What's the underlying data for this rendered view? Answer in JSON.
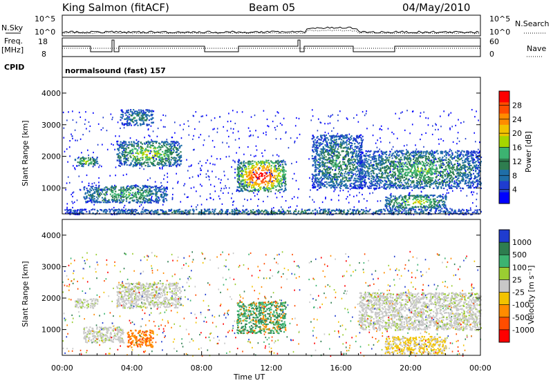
{
  "header": {
    "station": "King Salmon (fitACF)",
    "beam": "Beam 05",
    "date": "04/May/2010"
  },
  "side_labels": {
    "nsky": "N.Sky",
    "nsky_ticks": [
      "10^5",
      "10^0"
    ],
    "nsearch": "N.Search",
    "nsearch_ticks": [
      "10^5",
      "10^0"
    ],
    "freq_line1": "Freq.",
    "freq_line2": "[MHz]",
    "freq_ticks": [
      "18",
      "8"
    ],
    "nave": "Nave",
    "nave_ticks": [
      "60",
      "0"
    ],
    "cpid": "CPID",
    "cpid_value": "normalsound (fast) 157"
  },
  "chart_data": [
    {
      "type": "heatmap",
      "name": "power",
      "ylabel": "Slant Range [km]",
      "xlabel": "",
      "x_range_hours": [
        0,
        24
      ],
      "ylim": [
        180,
        4500
      ],
      "y_ticks": [
        1000,
        2000,
        3000,
        4000
      ],
      "colorbar": {
        "label": "Power [dB]",
        "ticks": [
          "28",
          "24",
          "20",
          "16",
          "12",
          "8",
          "4"
        ],
        "colors": [
          "#ff0000",
          "#ff4d00",
          "#ff8c00",
          "#f2c300",
          "#a6d600",
          "#3cb371",
          "#2e7d4f",
          "#1f6ea8",
          "#1f3ccf",
          "#0000ff"
        ]
      },
      "regions": [
        {
          "t0": 0.7,
          "t1": 2.0,
          "r0": 1700,
          "r1": 2000,
          "level": 0.35
        },
        {
          "t0": 3.1,
          "t1": 6.8,
          "r0": 1700,
          "r1": 2500,
          "level": 0.4
        },
        {
          "t0": 1.2,
          "t1": 6.0,
          "r0": 550,
          "r1": 1100,
          "level": 0.3
        },
        {
          "t0": 3.3,
          "t1": 5.2,
          "r0": 3000,
          "r1": 3500,
          "level": 0.2
        },
        {
          "t0": 10.0,
          "t1": 12.8,
          "r0": 900,
          "r1": 1900,
          "level": 0.75
        },
        {
          "t0": 14.3,
          "t1": 17.2,
          "r0": 1000,
          "r1": 2700,
          "level": 0.25
        },
        {
          "t0": 17.0,
          "t1": 24.0,
          "r0": 1000,
          "r1": 2200,
          "level": 0.3
        },
        {
          "t0": 18.5,
          "t1": 22.0,
          "r0": 350,
          "r1": 800,
          "level": 0.4
        },
        {
          "t0": 0.0,
          "t1": 24.0,
          "r0": 180,
          "r1": 350,
          "level": 0.2
        }
      ]
    },
    {
      "type": "heatmap",
      "name": "velocity",
      "ylabel": "Slant Range [km]",
      "xlabel": "Time UT",
      "x_range_hours": [
        0,
        24
      ],
      "x_ticks": [
        "00:00",
        "04:00",
        "08:00",
        "12:00",
        "16:00",
        "20:00",
        "00:00"
      ],
      "ylim": [
        180,
        4500
      ],
      "y_ticks": [
        1000,
        2000,
        3000,
        4000
      ],
      "colorbar": {
        "label": "Velocity [m s⁻¹]",
        "ticks": [
          "1000",
          "500",
          "100",
          "25",
          "-25",
          "-100",
          "-500",
          "-1000"
        ],
        "colors": [
          "#1f3ccf",
          "#2e7d4f",
          "#3cb371",
          "#9acd32",
          "#c8c8c8",
          "#f2c300",
          "#ff8c00",
          "#ff4d00",
          "#ff0000"
        ]
      },
      "regions": [
        {
          "t0": 0.7,
          "t1": 2.0,
          "r0": 1700,
          "r1": 2000,
          "v": "ground"
        },
        {
          "t0": 3.1,
          "t1": 6.8,
          "r0": 1700,
          "r1": 2500,
          "v": "ground"
        },
        {
          "t0": 1.2,
          "t1": 3.5,
          "r0": 600,
          "r1": 1100,
          "v": "ground"
        },
        {
          "t0": 3.7,
          "t1": 5.2,
          "r0": 450,
          "r1": 1000,
          "v": "negative"
        },
        {
          "t0": 10.0,
          "t1": 12.8,
          "r0": 900,
          "r1": 1900,
          "v": "positive"
        },
        {
          "t0": 17.0,
          "t1": 24.0,
          "r0": 1000,
          "r1": 2200,
          "v": "ground"
        },
        {
          "t0": 18.5,
          "t1": 22.0,
          "r0": 250,
          "r1": 800,
          "v": "slow-negative"
        }
      ]
    }
  ]
}
